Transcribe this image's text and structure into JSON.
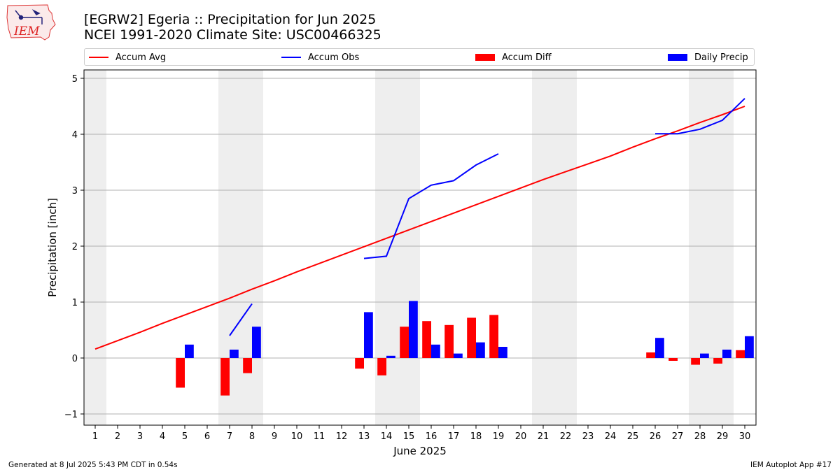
{
  "logo": {
    "text": "IEM"
  },
  "header": {
    "title_line1": "[EGRW2] Egeria :: Precipitation for Jun 2025",
    "title_line2": "NCEI 1991-2020 Climate Site: USC00466325"
  },
  "legend": {
    "items": [
      {
        "label": "Accum Avg",
        "color": "#ff0000",
        "kind": "line"
      },
      {
        "label": "Accum Obs",
        "color": "#0000ff",
        "kind": "line"
      },
      {
        "label": "Accum Diff",
        "color": "#ff0000",
        "kind": "bar"
      },
      {
        "label": "Daily Precip",
        "color": "#0000ff",
        "kind": "bar"
      }
    ]
  },
  "chart_data": {
    "type": "bar",
    "xlabel": "June 2025",
    "ylabel": "Precipitation [inch]",
    "ylim": [
      -1.2,
      5.15
    ],
    "yticks": [
      -1,
      0,
      1,
      2,
      3,
      4,
      5
    ],
    "grid": "horizontal",
    "legend_placement": "top",
    "x": [
      1,
      2,
      3,
      4,
      5,
      6,
      7,
      8,
      9,
      10,
      11,
      12,
      13,
      14,
      15,
      16,
      17,
      18,
      19,
      20,
      21,
      22,
      23,
      24,
      25,
      26,
      27,
      28,
      29,
      30
    ],
    "weekend_days": [
      1,
      7,
      8,
      14,
      15,
      21,
      22,
      28,
      29
    ],
    "series": [
      {
        "name": "Accum Avg",
        "kind": "line",
        "color": "#ff0000",
        "values": [
          0.16,
          0.31,
          0.46,
          0.62,
          0.77,
          0.92,
          1.07,
          1.23,
          1.38,
          1.54,
          1.69,
          1.84,
          1.99,
          2.14,
          2.29,
          2.44,
          2.59,
          2.74,
          2.89,
          3.04,
          3.19,
          3.33,
          3.47,
          3.61,
          3.77,
          3.92,
          4.06,
          4.21,
          4.35,
          4.5
        ]
      },
      {
        "name": "Accum Obs",
        "kind": "line",
        "color": "#0000ff",
        "values": [
          null,
          null,
          null,
          null,
          null,
          null,
          0.4,
          0.97,
          null,
          null,
          null,
          null,
          1.78,
          1.82,
          2.85,
          3.09,
          3.17,
          3.45,
          3.65,
          null,
          null,
          null,
          null,
          null,
          null,
          4.01,
          4.01,
          4.09,
          4.25,
          4.64
        ]
      },
      {
        "name": "Accum Diff",
        "kind": "bar",
        "color": "#ff0000",
        "values": [
          null,
          null,
          null,
          null,
          -0.53,
          null,
          -0.67,
          -0.27,
          null,
          null,
          null,
          null,
          -0.19,
          -0.31,
          0.56,
          0.66,
          0.59,
          0.72,
          0.77,
          null,
          null,
          null,
          null,
          null,
          null,
          0.1,
          -0.05,
          -0.12,
          -0.1,
          0.14
        ]
      },
      {
        "name": "Daily Precip",
        "kind": "bar",
        "color": "#0000ff",
        "values": [
          null,
          null,
          null,
          null,
          0.24,
          null,
          0.15,
          0.56,
          null,
          null,
          null,
          null,
          0.82,
          0.04,
          1.02,
          0.24,
          0.08,
          0.28,
          0.2,
          null,
          null,
          null,
          null,
          null,
          null,
          0.36,
          null,
          0.08,
          0.15,
          0.39
        ]
      }
    ]
  },
  "footer": {
    "left": "Generated at 8 Jul 2025 5:43 PM CDT in 0.54s",
    "right": "IEM Autoplot App #17"
  }
}
